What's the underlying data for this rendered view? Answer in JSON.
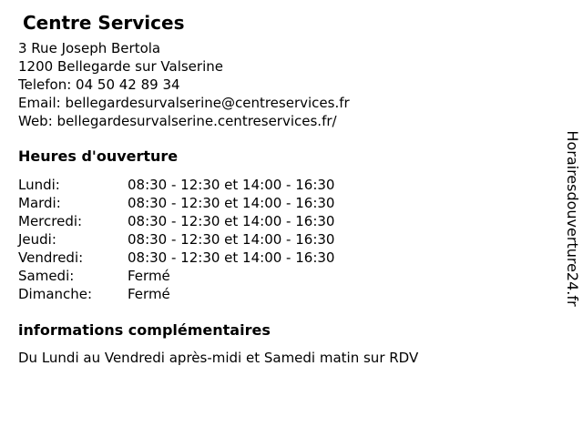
{
  "header": {
    "title": "Centre Services"
  },
  "contact": {
    "street": "3 Rue Joseph Bertola",
    "city": "1200 Bellegarde sur Valserine",
    "phone_label": "Telefon:",
    "phone_number": "04 50 42 89 34",
    "email_label": "Email:",
    "email": "bellegardesurvalserine@centreservices.fr",
    "web_label": "Web:",
    "website": "bellegardesurvalserine.centreservices.fr/"
  },
  "hours": {
    "heading": "Heures d'ouverture",
    "rows": [
      {
        "day": "Lundi:",
        "time": "08:30 - 12:30 et 14:00 - 16:30"
      },
      {
        "day": "Mardi:",
        "time": "08:30 - 12:30 et 14:00 - 16:30"
      },
      {
        "day": "Mercredi:",
        "time": "08:30 - 12:30 et 14:00 - 16:30"
      },
      {
        "day": "Jeudi:",
        "time": "08:30 - 12:30 et 14:00 - 16:30"
      },
      {
        "day": "Vendredi:",
        "time": "08:30 - 12:30 et 14:00 - 16:30"
      },
      {
        "day": "Samedi:",
        "time": "Fermé"
      },
      {
        "day": "Dimanche:",
        "time": "Fermé"
      }
    ]
  },
  "extra": {
    "heading": "informations complémentaires",
    "text": "Du Lundi au Vendredi après-midi et Samedi matin sur RDV"
  },
  "watermark": {
    "text": "Horairesdouverture24.fr"
  },
  "colors": {
    "background": "#ffffff",
    "text": "#000000"
  }
}
